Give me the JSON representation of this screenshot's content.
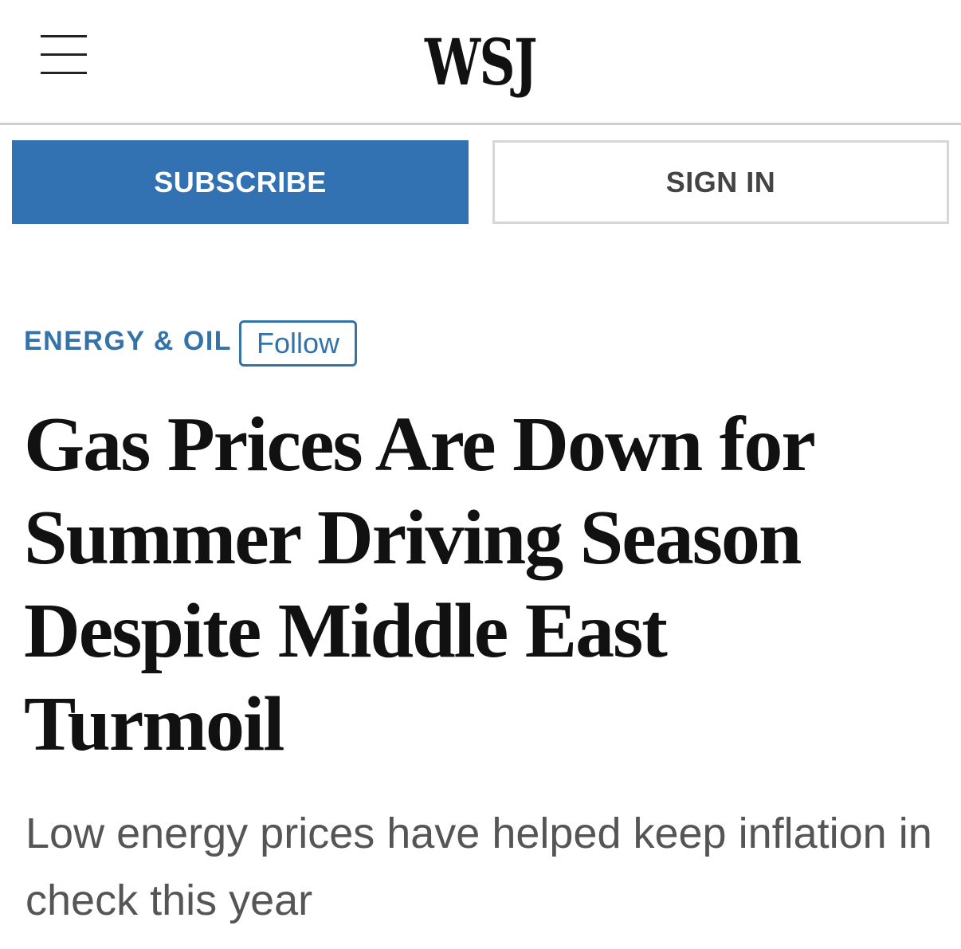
{
  "header": {
    "logo": "WSJ",
    "menu_icon": "hamburger-menu-icon"
  },
  "auth": {
    "subscribe_label": "SUBSCRIBE",
    "signin_label": "SIGN IN"
  },
  "colors": {
    "accent": "#3372b2",
    "section": "#3472a8",
    "headline": "#111111",
    "dek": "#555555"
  },
  "article": {
    "section": "ENERGY & OIL",
    "follow_label": "Follow",
    "headline": "Gas Prices Are Down for Summer Driving Season Despite Middle East Turmoil",
    "dek": "Low energy prices have helped keep inflation in check this year"
  }
}
